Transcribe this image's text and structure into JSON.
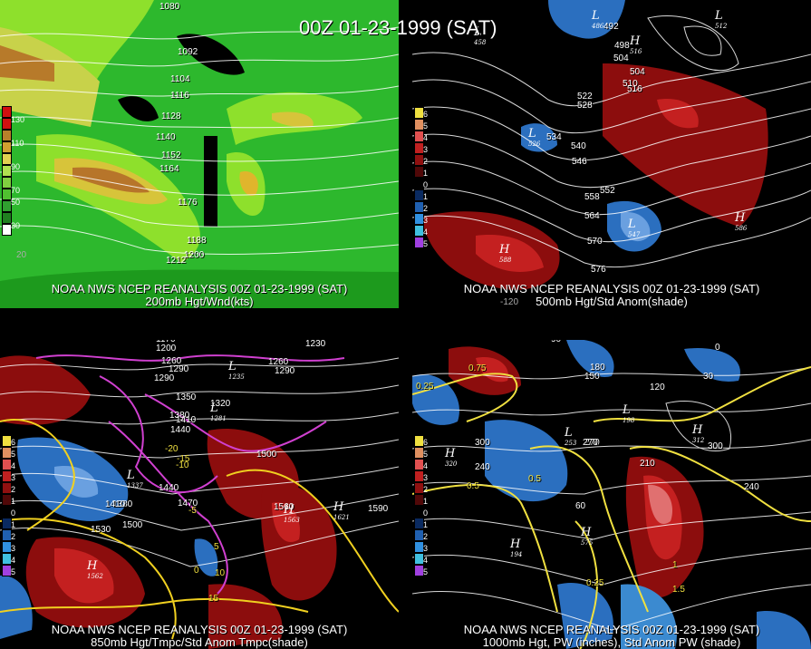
{
  "title": "00Z 01-23-1999 (SAT)",
  "panels": [
    {
      "line1": "NOAA NWS NCEP REANALYSIS 00Z 01-23-1999 (SAT)",
      "line2": "200mb Hgt/Wnd(kts)",
      "colorbar": [
        "130",
        "110",
        "90",
        "70",
        "50",
        "30"
      ],
      "contours": [
        "1080",
        "1092",
        "1104",
        "1116",
        "1128",
        "1140",
        "1152",
        "1164",
        "1176",
        "1188",
        "1200",
        "1212"
      ],
      "axis": [
        "20"
      ]
    },
    {
      "line1": "NOAA NWS NCEP REANALYSIS 00Z 01-23-1999 (SAT)",
      "line2": "500mb Hgt/Std Anom(shade)",
      "colorbar": [
        "6",
        "5",
        "4",
        "3",
        "2",
        "1",
        "0",
        "1",
        "2",
        "3",
        "4",
        "5"
      ],
      "contours": [
        "492",
        "498",
        "504",
        "504",
        "510",
        "516",
        "522",
        "528",
        "534",
        "540",
        "546",
        "552",
        "558",
        "564",
        "570",
        "576"
      ],
      "highs_lows": [
        {
          "type": "L",
          "value": "458"
        },
        {
          "type": "L",
          "value": "486"
        },
        {
          "type": "H",
          "value": "516"
        },
        {
          "type": "L",
          "value": "512"
        },
        {
          "type": "L",
          "value": "526"
        },
        {
          "type": "L",
          "value": "547"
        },
        {
          "type": "H",
          "value": "586"
        },
        {
          "type": "H",
          "value": "588"
        }
      ],
      "axis": [
        "-120"
      ]
    },
    {
      "line1": "NOAA NWS NCEP REANALYSIS 00Z 01-23-1999 (SAT)",
      "line2": "850mb Hgt/Tmpc/Std Anom Tmpc(shade)",
      "colorbar": [
        "6",
        "5",
        "4",
        "3",
        "2",
        "1",
        "0",
        "1",
        "2",
        "3",
        "4",
        "5"
      ],
      "contours": [
        "1170",
        "1200",
        "1260",
        "1290",
        "1320",
        "1350",
        "1380",
        "1410",
        "1440",
        "1470",
        "1500",
        "1530",
        "1560",
        "1590",
        "1380",
        "1410",
        "1440",
        "1500",
        "1230",
        "1260",
        "1290",
        "1290",
        "1320"
      ],
      "temps": [
        "-20",
        "-15",
        "-10",
        "-5",
        "0",
        "5",
        "10",
        "15"
      ],
      "highs_lows": [
        {
          "type": "L",
          "value": "1337"
        },
        {
          "type": "L",
          "value": "1235"
        },
        {
          "type": "L",
          "value": "1281"
        },
        {
          "type": "H",
          "value": "1563"
        },
        {
          "type": "H",
          "value": "1621"
        },
        {
          "type": "H",
          "value": "1562"
        }
      ]
    },
    {
      "line1": "NOAA NWS NCEP REANALYSIS 00Z 01-23-1999 (SAT)",
      "line2": "1000mb Hgt, PW (inches), Std Anom PW (shade)",
      "colorbar": [
        "6",
        "5",
        "4",
        "3",
        "2",
        "1",
        "0",
        "1",
        "2",
        "3",
        "4",
        "5"
      ],
      "contours": [
        "90",
        "120",
        "150",
        "180",
        "210",
        "240",
        "270",
        "300",
        "60",
        "30",
        "0",
        "240",
        "300",
        "270"
      ],
      "pw": [
        "0.25",
        "0.5",
        "0.25",
        "0.5",
        "0.75",
        "1",
        "1.5"
      ],
      "highs_lows": [
        {
          "type": "H",
          "value": "320"
        },
        {
          "type": "L",
          "value": "253"
        },
        {
          "type": "L",
          "value": "198"
        },
        {
          "type": "H",
          "value": "312"
        },
        {
          "type": "H",
          "value": "575"
        },
        {
          "type": "H",
          "value": "194"
        }
      ]
    }
  ],
  "colors": {
    "green_light": "#9be830",
    "green_mid": "#4fc82a",
    "green_dark": "#1f9a1f",
    "orange": "#c98c2a",
    "brown": "#a0601c",
    "red_dark": "#8c0d0d",
    "red": "#c42020",
    "blue": "#2b6fbf",
    "magenta": "#e050e0",
    "yellow": "#f0e040"
  }
}
